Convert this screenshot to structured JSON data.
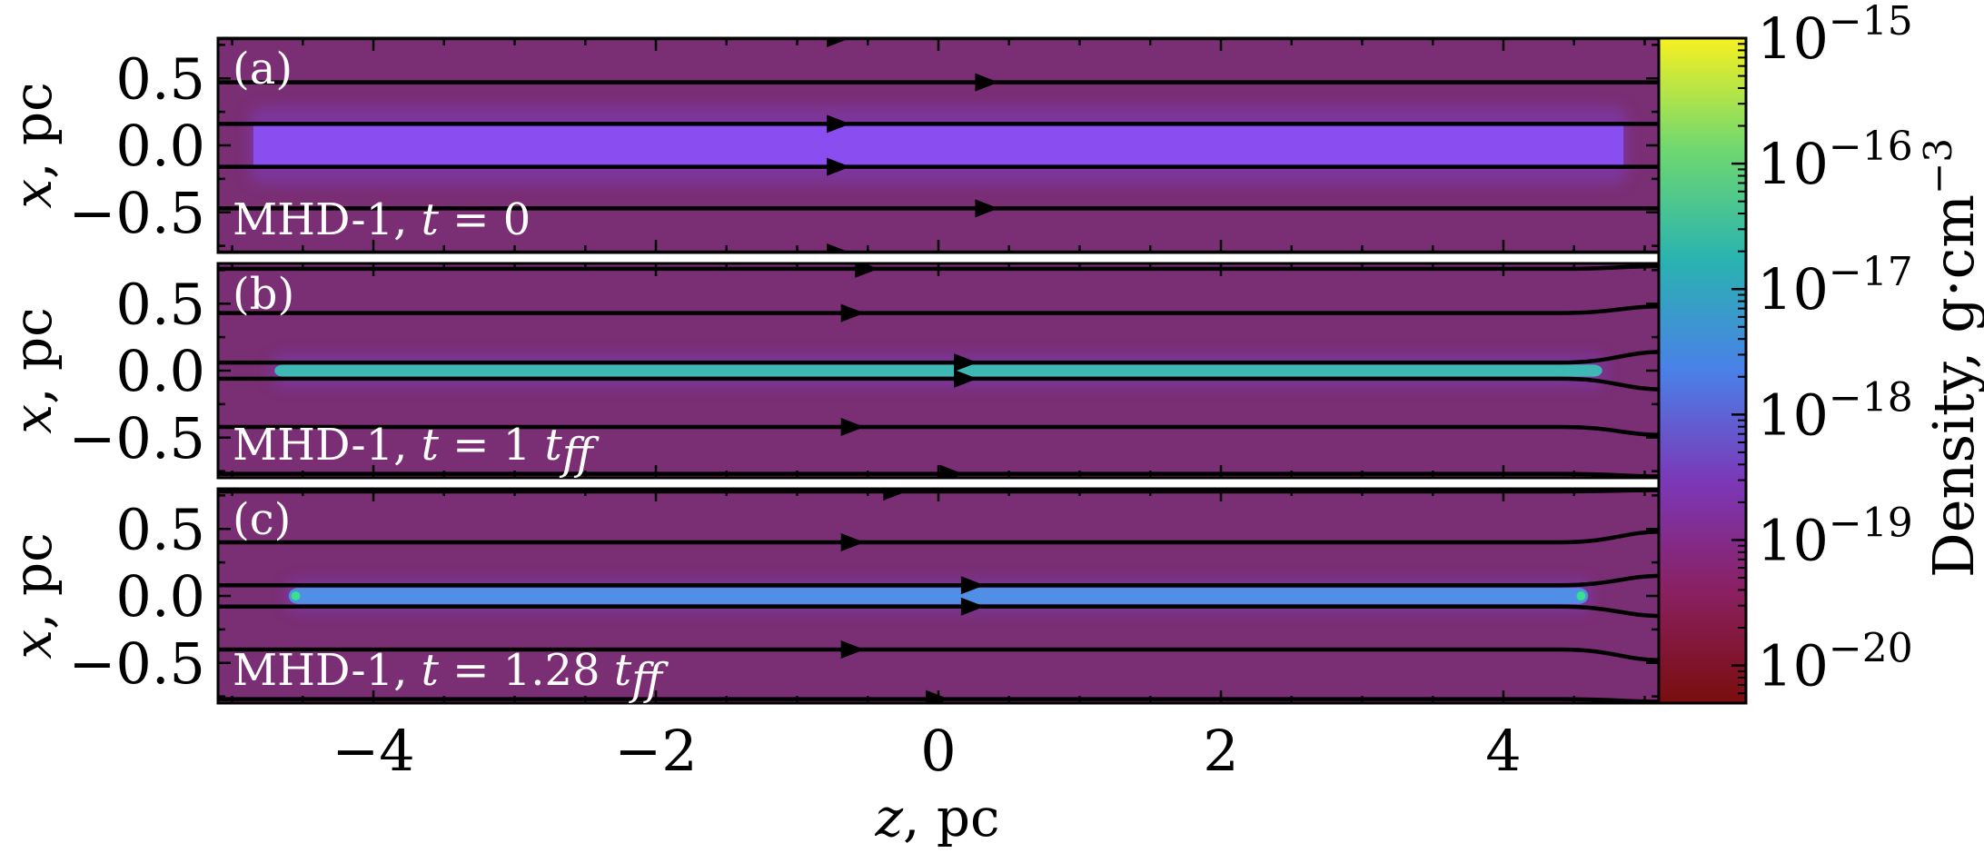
{
  "chart_data": {
    "type": "heatmap",
    "colormap": "viridis-to-darkred (log density)",
    "colors": {
      "background": "#7a2e73",
      "filament_initial": "#8a4df0",
      "filament_evolved": "#3fb8b5",
      "filament_late": "#4f90e6",
      "halo": "#7e3ec0",
      "field_lines": "#000000",
      "hot_spot": "#38e08a"
    },
    "xlabel": "z, pc",
    "xlabel_var": "z",
    "xlabel_unit": ", pc",
    "xlim": [
      -5.1,
      5.1
    ],
    "xticks": [
      -4,
      -2,
      0,
      2,
      4
    ],
    "xtick_labels": [
      "−4",
      "−2",
      "0",
      "2",
      "4"
    ],
    "ylim": [
      -0.8,
      0.8
    ],
    "yticks": [
      0.5,
      0.0,
      -0.5
    ],
    "ytick_labels": [
      "0.5",
      "0.0",
      "−0.5"
    ],
    "ylabel_var": "x",
    "ylabel_unit": ", pc",
    "panels": [
      {
        "tag": "(a)",
        "model": "MHD-1, ",
        "time_var": "t",
        "time_value": " = 0",
        "time_unit": "",
        "filament": {
          "z_range": [
            -4.85,
            4.85
          ],
          "half_width": 0.16,
          "color": "#8a4df0"
        },
        "field_lines": [
          {
            "x_left": 0.8,
            "x_right": 0.8,
            "arrow_z": -0.7
          },
          {
            "x_left": 0.47,
            "x_right": 0.47,
            "arrow_z": 0.35
          },
          {
            "x_left": 0.16,
            "x_right": 0.16,
            "arrow_z": -0.7
          },
          {
            "x_left": -0.16,
            "x_right": -0.16,
            "arrow_z": -0.7
          },
          {
            "x_left": -0.47,
            "x_right": -0.47,
            "arrow_z": 0.35
          },
          {
            "x_left": -0.8,
            "x_right": -0.8,
            "arrow_z": -0.7
          }
        ]
      },
      {
        "tag": "(b)",
        "model": "MHD-1, ",
        "time_var": "t",
        "time_value": " = 1 ",
        "time_unit": "t",
        "time_sub": "ff",
        "filament": {
          "z_range": [
            -4.7,
            4.7
          ],
          "half_width": 0.045,
          "color": "#3fb8b5"
        },
        "field_lines": [
          {
            "x_left": 0.76,
            "x_right": 0.78,
            "arrow_z": -0.5
          },
          {
            "x_left": 0.43,
            "x_right": 0.48,
            "arrow_z": -0.6
          },
          {
            "x_left": 0.06,
            "x_right": 0.14,
            "arrow_z": 0.2
          },
          {
            "x_left": -0.06,
            "x_right": -0.14,
            "arrow_z": 0.2
          },
          {
            "x_left": -0.42,
            "x_right": -0.48,
            "arrow_z": -0.6
          },
          {
            "x_left": -0.77,
            "x_right": -0.79,
            "arrow_z": 0.1
          }
        ]
      },
      {
        "tag": "(c)",
        "model": "MHD-1, ",
        "time_var": "t",
        "time_value": " = 1.28 ",
        "time_unit": "t",
        "time_sub": "ff",
        "filament": {
          "z_range": [
            -4.6,
            4.6
          ],
          "half_width": 0.06,
          "color": "#4f90e6"
        },
        "field_lines": [
          {
            "x_left": 0.78,
            "x_right": 0.79,
            "arrow_z": -0.3
          },
          {
            "x_left": 0.4,
            "x_right": 0.48,
            "arrow_z": -0.6
          },
          {
            "x_left": 0.08,
            "x_right": 0.15,
            "arrow_z": 0.25
          },
          {
            "x_left": -0.08,
            "x_right": -0.15,
            "arrow_z": 0.25
          },
          {
            "x_left": -0.4,
            "x_right": -0.48,
            "arrow_z": -0.6
          },
          {
            "x_left": -0.77,
            "x_right": -0.79,
            "arrow_z": 0.0
          }
        ]
      }
    ],
    "colorbar": {
      "label": "Density, g·cm",
      "label_exp": "−3",
      "scale": "log",
      "range": [
        -20.3,
        -15
      ],
      "ticks": [
        -15,
        -16,
        -17,
        -18,
        -19,
        -20
      ],
      "tick_base": "10",
      "tick_exponents": [
        "−15",
        "−16",
        "−17",
        "−18",
        "−19",
        "−20"
      ],
      "stops": [
        "#7a0d0d",
        "#8a2060",
        "#7b38b8",
        "#4a80e8",
        "#2ab3b0",
        "#6fd870",
        "#f7f021"
      ]
    }
  }
}
